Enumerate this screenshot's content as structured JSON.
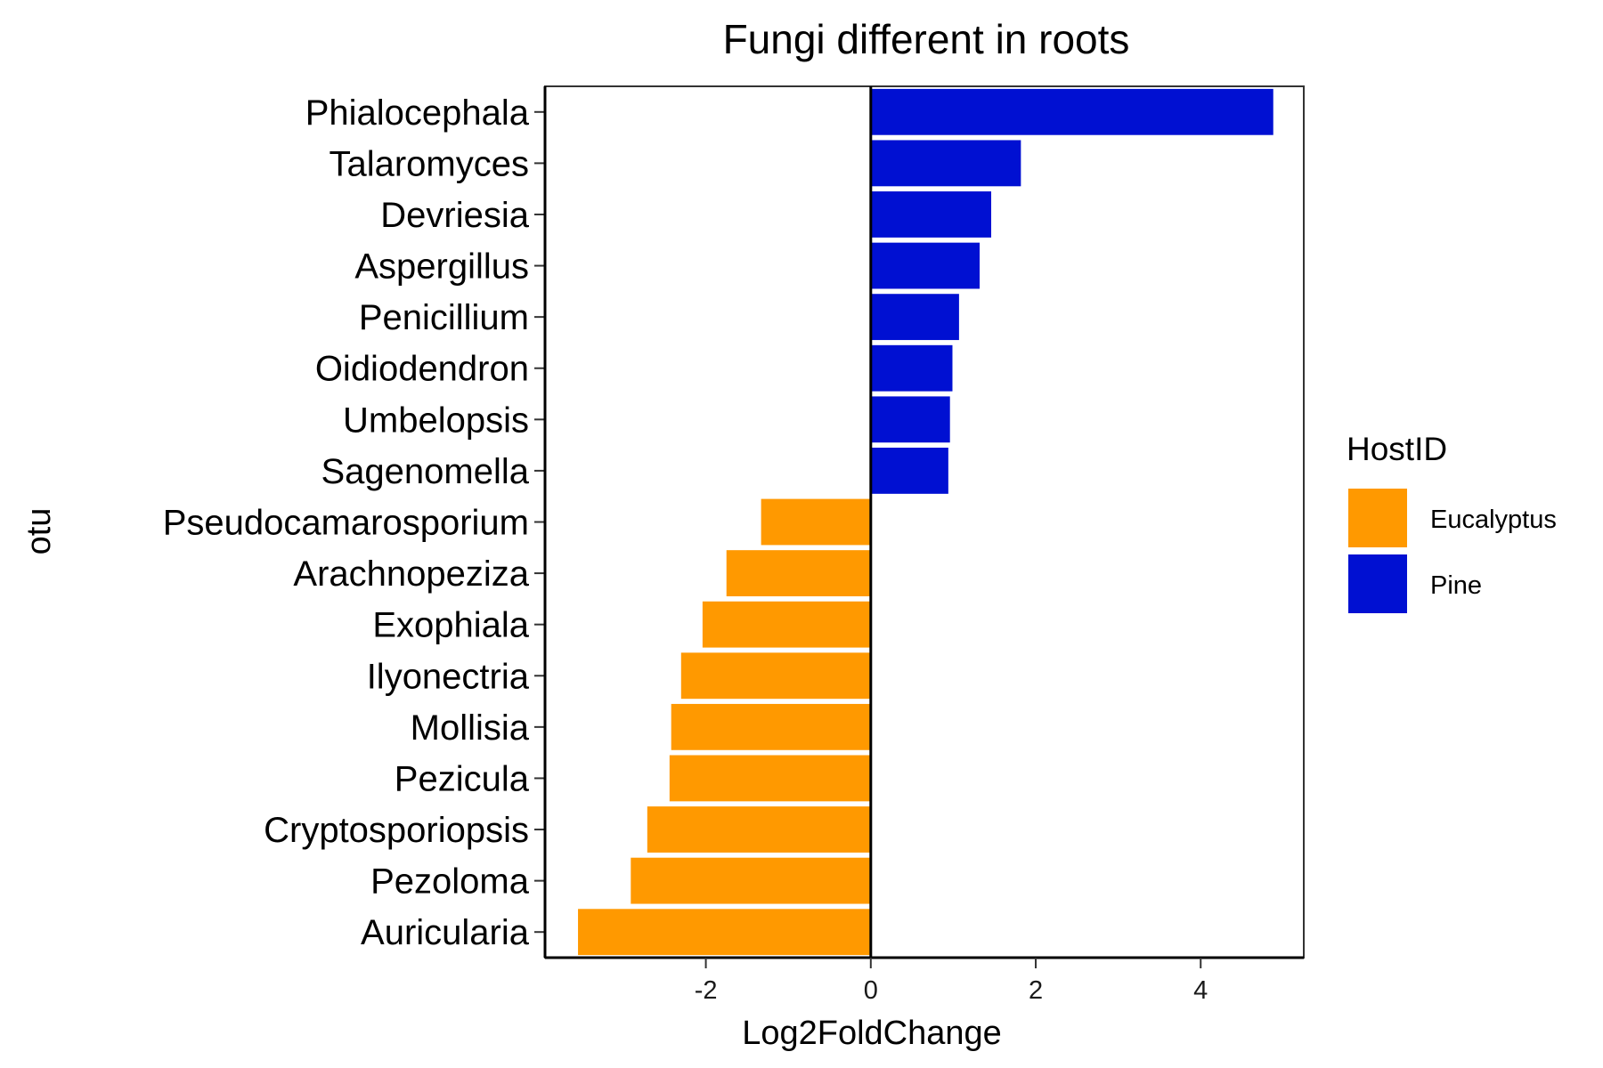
{
  "chart_data": {
    "type": "bar",
    "orientation": "horizontal",
    "title": "Fungi different in roots",
    "xlabel": "Log2FoldChange",
    "ylabel": "otu",
    "xlim": [
      -3.95,
      5.25
    ],
    "xticks": [
      -2,
      0,
      2,
      4
    ],
    "xtick_labels": [
      "-2",
      "0",
      "2",
      "4"
    ],
    "grid": false,
    "legend_position": "right",
    "legend": {
      "title": "HostID",
      "entries": [
        {
          "name": "Eucalyptus",
          "color": "#FF9900"
        },
        {
          "name": "Pine",
          "color": "#0010D2"
        }
      ]
    },
    "categories": [
      "Phialocephala",
      "Talaromyces",
      "Devriesia",
      "Aspergillus",
      "Penicillium",
      "Oidiodendron",
      "Umbelopsis",
      "Sagenomella",
      "Pseudocamarosporium",
      "Arachnopeziza",
      "Exophiala",
      "Ilyonectria",
      "Mollisia",
      "Pezicula",
      "Cryptosporiopsis",
      "Pezoloma",
      "Auricularia"
    ],
    "values": [
      4.88,
      1.82,
      1.46,
      1.32,
      1.07,
      0.99,
      0.96,
      0.94,
      -1.33,
      -1.75,
      -2.04,
      -2.3,
      -2.42,
      -2.44,
      -2.71,
      -2.91,
      -3.55
    ],
    "groups": [
      "Pine",
      "Pine",
      "Pine",
      "Pine",
      "Pine",
      "Pine",
      "Pine",
      "Pine",
      "Eucalyptus",
      "Eucalyptus",
      "Eucalyptus",
      "Eucalyptus",
      "Eucalyptus",
      "Eucalyptus",
      "Eucalyptus",
      "Eucalyptus",
      "Eucalyptus"
    ]
  }
}
